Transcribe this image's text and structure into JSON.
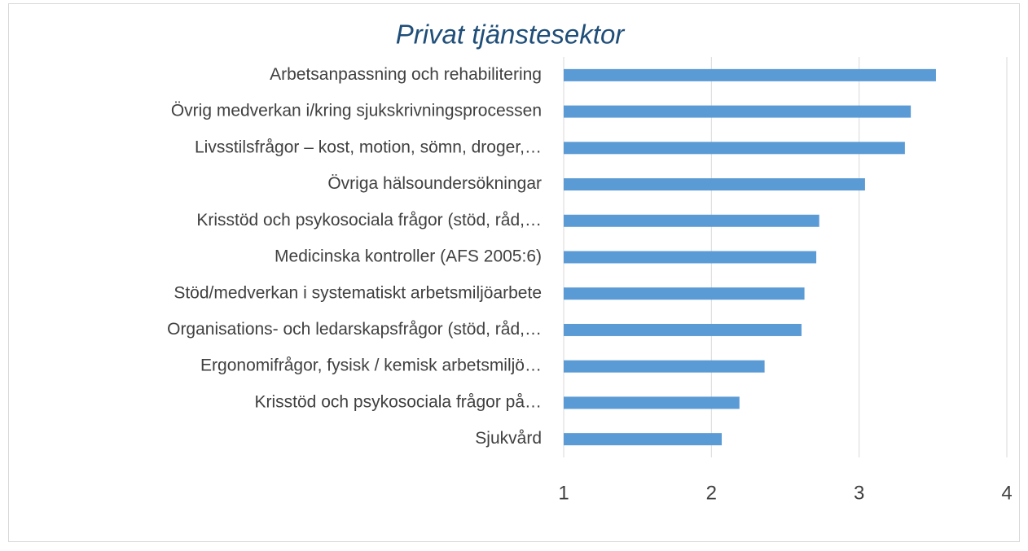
{
  "chart_data": {
    "type": "bar",
    "orientation": "horizontal",
    "title": "Privat tjänstesektor",
    "categories": [
      "Arbetsanpassning och rehabilitering",
      "Övrig medverkan i/kring sjukskrivningsprocessen",
      "Livsstilsfrågor – kost, motion, sömn, droger,…",
      "Övriga hälsoundersökningar",
      "Krisstöd och psykosociala frågor (stöd, råd,…",
      "Medicinska kontroller (AFS 2005:6)",
      "Stöd/medverkan i systematiskt arbetsmiljöarbete",
      "Organisations- och ledarskapsfrågor (stöd, råd,…",
      "Ergonomifrågor, fysisk / kemisk arbetsmiljö…",
      "Krisstöd och psykosociala frågor på…",
      "Sjukvård"
    ],
    "values": [
      3.52,
      3.35,
      3.31,
      3.04,
      2.73,
      2.71,
      2.63,
      2.61,
      2.36,
      2.19,
      2.07
    ],
    "color": "#5b9bd5",
    "xlim": [
      1,
      4
    ],
    "xticks": [
      1,
      2,
      3,
      4
    ],
    "grid": true
  }
}
